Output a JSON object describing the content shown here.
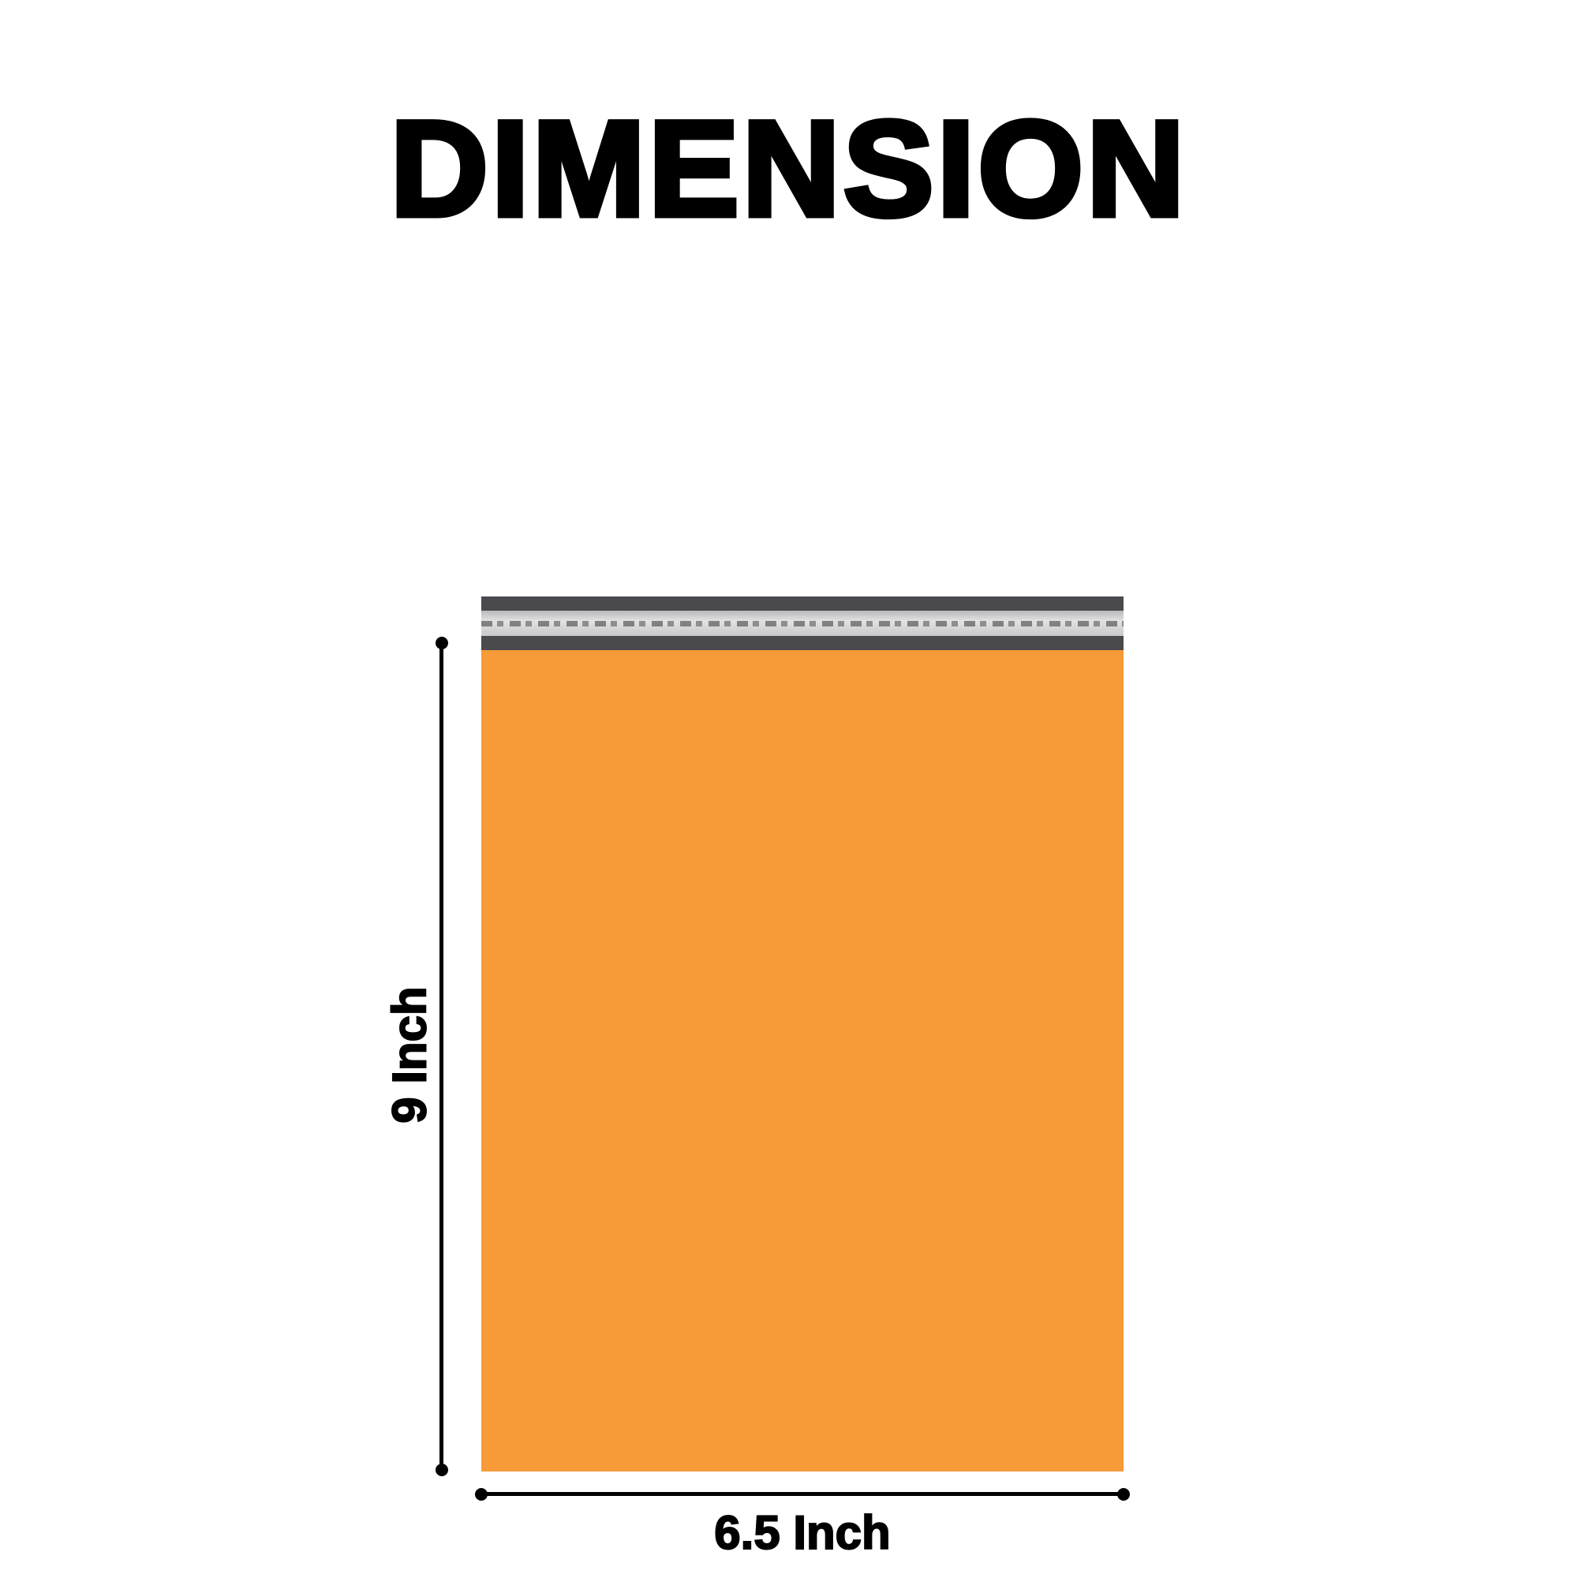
{
  "title": "DIMENSION",
  "product": {
    "color": "#f79a38",
    "seal_strip_color": "#4a4a4e"
  },
  "dimensions": {
    "height_label": "9 Inch",
    "width_label": "6.5 Inch"
  }
}
